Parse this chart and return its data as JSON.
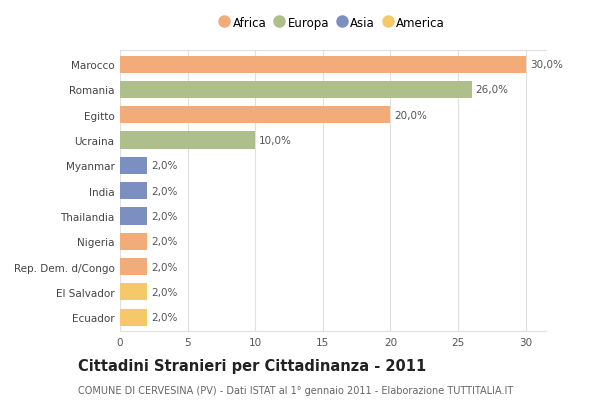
{
  "countries": [
    "Marocco",
    "Romania",
    "Egitto",
    "Ucraina",
    "Myanmar",
    "India",
    "Thailandia",
    "Nigeria",
    "Rep. Dem. d/Congo",
    "El Salvador",
    "Ecuador"
  ],
  "values": [
    30.0,
    26.0,
    20.0,
    10.0,
    2.0,
    2.0,
    2.0,
    2.0,
    2.0,
    2.0,
    2.0
  ],
  "continents": [
    "Africa",
    "Europa",
    "Africa",
    "Europa",
    "Asia",
    "Asia",
    "Asia",
    "Africa",
    "Africa",
    "America",
    "America"
  ],
  "continent_colors": {
    "Africa": "#F2AC7A",
    "Europa": "#AEBF8C",
    "Asia": "#7B8FC0",
    "America": "#F5C96A"
  },
  "legend_order": [
    "Africa",
    "Europa",
    "Asia",
    "America"
  ],
  "title": "Cittadini Stranieri per Cittadinanza - 2011",
  "subtitle": "COMUNE DI CERVESINA (PV) - Dati ISTAT al 1° gennaio 2011 - Elaborazione TUTTITALIA.IT",
  "xlim": [
    0,
    31.5
  ],
  "xticks": [
    0,
    5,
    10,
    15,
    20,
    25,
    30
  ],
  "background_color": "#ffffff",
  "grid_color": "#e0e0e0",
  "label_fontsize": 7.5,
  "title_fontsize": 10.5,
  "subtitle_fontsize": 7.0,
  "tick_fontsize": 7.5,
  "legend_fontsize": 8.5,
  "bar_height": 0.68
}
